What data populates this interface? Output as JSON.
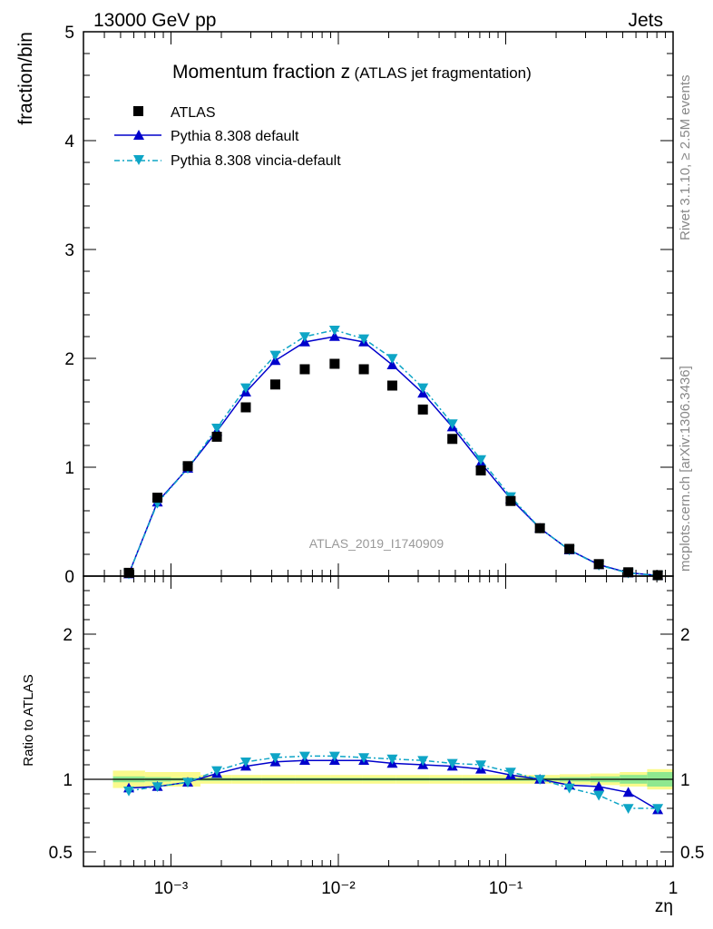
{
  "header": {
    "left": "13000 GeV pp",
    "right": "Jets"
  },
  "side_text": {
    "rivet": "Rivet 3.1.10, ≥ 2.5M events",
    "mcplots": "mcplots.cern.ch [arXiv:1306.3436]"
  },
  "chart_data": {
    "type": "scatter",
    "title_main": "Momentum fraction z",
    "title_sub": "(ATLAS jet fragmentation)",
    "xlabel": "zη",
    "ylabel": "fraction/bin",
    "ratio_ylabel": "Ratio to ATLAS",
    "analysis_label": "ATLAS_2019_I1740909",
    "xscale": "log",
    "xlim": [
      0.0003,
      1.0
    ],
    "ylim": [
      0,
      5
    ],
    "ratio_ylim": [
      0.4,
      2.4
    ],
    "x_tick_labels": [
      "10⁻³",
      "10⁻²",
      "10⁻¹",
      "1"
    ],
    "y_tick_labels": [
      "0",
      "1",
      "2",
      "3",
      "4",
      "5"
    ],
    "ratio_tick_labels": [
      "0.5",
      "1",
      "2"
    ],
    "legend": [
      "ATLAS",
      "Pythia 8.308 default",
      "Pythia 8.308 vincia-default"
    ],
    "colors": {
      "data": "#000000",
      "default": "#0000cc",
      "vincia": "#0ea5c6",
      "band_inner": "#8fe88f",
      "band_outer": "#fafa8c"
    },
    "x": [
      0.00056,
      0.00083,
      0.00126,
      0.00188,
      0.0028,
      0.0042,
      0.0063,
      0.0095,
      0.0142,
      0.021,
      0.032,
      0.048,
      0.071,
      0.107,
      0.16,
      0.24,
      0.36,
      0.54,
      0.81
    ],
    "series": [
      {
        "name": "ATLAS",
        "values": [
          0.03,
          0.72,
          1.01,
          1.28,
          1.55,
          1.76,
          1.9,
          1.95,
          1.9,
          1.75,
          1.53,
          1.26,
          0.97,
          0.69,
          0.44,
          0.25,
          0.11,
          0.035,
          0.008
        ]
      },
      {
        "name": "Pythia 8.308 default",
        "values": [
          0.02,
          0.68,
          0.99,
          1.33,
          1.69,
          1.98,
          2.15,
          2.2,
          2.15,
          1.94,
          1.68,
          1.37,
          1.04,
          0.71,
          0.44,
          0.24,
          0.105,
          0.03,
          0.006
        ]
      },
      {
        "name": "Pythia 8.308 vincia-default",
        "values": [
          0.02,
          0.67,
          0.99,
          1.36,
          1.73,
          2.03,
          2.2,
          2.26,
          2.18,
          2.0,
          1.73,
          1.4,
          1.07,
          0.73,
          0.44,
          0.24,
          0.1,
          0.028,
          0.006
        ]
      }
    ],
    "ratio_series": [
      {
        "name": "Pythia 8.308 default",
        "values": [
          0.94,
          0.95,
          0.98,
          1.04,
          1.09,
          1.12,
          1.13,
          1.13,
          1.13,
          1.11,
          1.1,
          1.09,
          1.07,
          1.03,
          1.0,
          0.96,
          0.95,
          0.91,
          0.79
        ]
      },
      {
        "name": "Pythia 8.308 vincia-default",
        "values": [
          0.92,
          0.95,
          0.98,
          1.06,
          1.12,
          1.15,
          1.16,
          1.16,
          1.15,
          1.14,
          1.13,
          1.11,
          1.1,
          1.05,
          1.0,
          0.94,
          0.89,
          0.8,
          0.8
        ]
      }
    ],
    "uncertainty_bands": {
      "edges": [
        0.00045,
        0.0007,
        0.001,
        0.0015,
        0.0023,
        0.0035,
        0.0055,
        0.009,
        0.014,
        0.022,
        0.035,
        0.055,
        0.09,
        0.14,
        0.21,
        0.32,
        0.48,
        0.7,
        1.0
      ],
      "inner": [
        0.02,
        0.015,
        0.01,
        0.01,
        0.01,
        0.01,
        0.01,
        0.01,
        0.01,
        0.01,
        0.01,
        0.01,
        0.01,
        0.01,
        0.015,
        0.02,
        0.03,
        0.05
      ],
      "outer": [
        0.06,
        0.05,
        0.05,
        0.03,
        0.03,
        0.03,
        0.03,
        0.03,
        0.03,
        0.03,
        0.03,
        0.03,
        0.03,
        0.03,
        0.035,
        0.04,
        0.05,
        0.07
      ]
    }
  }
}
